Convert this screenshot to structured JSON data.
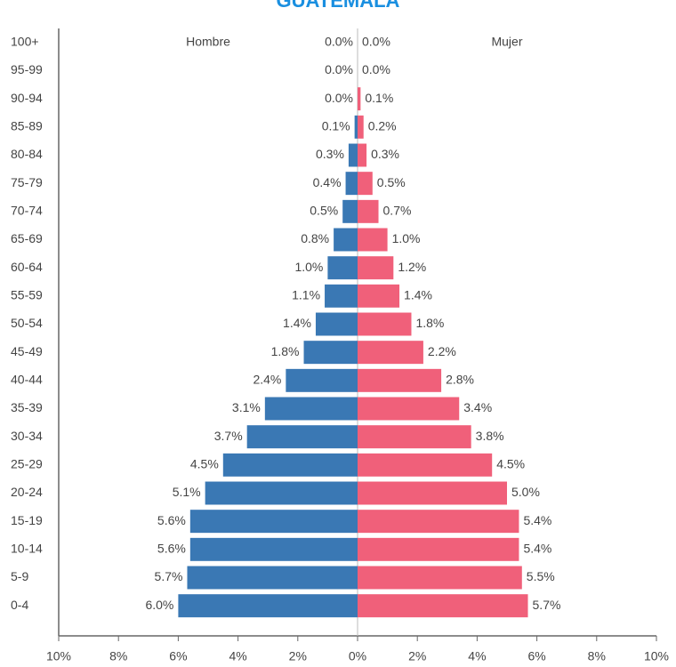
{
  "chart_data": {
    "type": "pyramid",
    "title": "GUATEMALA",
    "categories": [
      "100+",
      "95-99",
      "90-94",
      "85-89",
      "80-84",
      "75-79",
      "70-74",
      "65-69",
      "60-64",
      "55-59",
      "50-54",
      "45-49",
      "40-44",
      "35-39",
      "30-34",
      "25-29",
      "20-24",
      "15-19",
      "10-14",
      "5-9",
      "0-4"
    ],
    "series": [
      {
        "name": "Hombre",
        "color": "#3a78b4",
        "side": "left",
        "values": [
          0.0,
          0.0,
          0.0,
          0.1,
          0.3,
          0.4,
          0.5,
          0.8,
          1.0,
          1.1,
          1.4,
          1.8,
          2.4,
          3.1,
          3.7,
          4.5,
          5.1,
          5.6,
          5.6,
          5.7,
          6.0
        ],
        "value_labels": [
          "0.0%",
          "0.0%",
          "0.0%",
          "0.1%",
          "0.3%",
          "0.4%",
          "0.5%",
          "0.8%",
          "1.0%",
          "1.1%",
          "1.4%",
          "1.8%",
          "2.4%",
          "3.1%",
          "3.7%",
          "4.5%",
          "5.1%",
          "5.6%",
          "5.6%",
          "5.7%",
          "6.0%"
        ]
      },
      {
        "name": "Mujer",
        "color": "#f0607a",
        "side": "right",
        "values": [
          0.0,
          0.0,
          0.1,
          0.2,
          0.3,
          0.5,
          0.7,
          1.0,
          1.2,
          1.4,
          1.8,
          2.2,
          2.8,
          3.4,
          3.8,
          4.5,
          5.0,
          5.4,
          5.4,
          5.5,
          5.7
        ],
        "value_labels": [
          "0.0%",
          "0.0%",
          "0.1%",
          "0.2%",
          "0.3%",
          "0.5%",
          "0.7%",
          "1.0%",
          "1.2%",
          "1.4%",
          "1.8%",
          "2.2%",
          "2.8%",
          "3.4%",
          "3.8%",
          "4.5%",
          "5.0%",
          "5.4%",
          "5.4%",
          "5.5%",
          "5.7%"
        ]
      }
    ],
    "xlim": [
      -10,
      10
    ],
    "xticks": [
      {
        "value": -10,
        "label": "10%"
      },
      {
        "value": -8,
        "label": "8%"
      },
      {
        "value": -6,
        "label": "6%"
      },
      {
        "value": -4,
        "label": "4%"
      },
      {
        "value": -2,
        "label": "2%"
      },
      {
        "value": 0,
        "label": "0%"
      },
      {
        "value": 2,
        "label": "2%"
      },
      {
        "value": 4,
        "label": "4%"
      },
      {
        "value": 6,
        "label": "6%"
      },
      {
        "value": 8,
        "label": "8%"
      },
      {
        "value": 10,
        "label": "10%"
      }
    ]
  }
}
